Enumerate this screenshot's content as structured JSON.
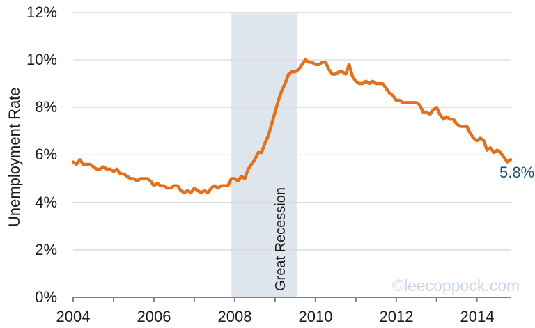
{
  "chart_data": {
    "type": "line",
    "xlabel": "",
    "ylabel": "Unemployment Rate",
    "ylim": [
      0,
      12
    ],
    "y_ticks": [
      0,
      2,
      4,
      6,
      8,
      10,
      12
    ],
    "y_tick_labels": [
      "0%",
      "2%",
      "4%",
      "6%",
      "8%",
      "10%",
      "12%"
    ],
    "xlim": [
      2004,
      2014.833
    ],
    "x_minor_tick_years": [
      2004,
      2005,
      2006,
      2007,
      2008,
      2009,
      2010,
      2011,
      2012,
      2013,
      2014
    ],
    "x_tick_labels": [
      {
        "year": 2004,
        "label": "2004"
      },
      {
        "year": 2006,
        "label": "2006"
      },
      {
        "year": 2008,
        "label": "2008"
      },
      {
        "year": 2010,
        "label": "2010"
      },
      {
        "year": 2012,
        "label": "2012"
      },
      {
        "year": 2014,
        "label": "2014"
      }
    ],
    "grid": "horizontal",
    "legend": "none",
    "series": [
      {
        "name": "Unemployment Rate",
        "color": "#E2711D",
        "frequency": "monthly",
        "start_year": 2004,
        "start_month": 1,
        "values": [
          5.7,
          5.6,
          5.8,
          5.6,
          5.6,
          5.6,
          5.5,
          5.4,
          5.4,
          5.5,
          5.4,
          5.4,
          5.3,
          5.4,
          5.2,
          5.2,
          5.1,
          5.0,
          5.0,
          4.9,
          5.0,
          5.0,
          5.0,
          4.9,
          4.7,
          4.8,
          4.7,
          4.7,
          4.6,
          4.6,
          4.7,
          4.7,
          4.5,
          4.4,
          4.5,
          4.4,
          4.6,
          4.5,
          4.4,
          4.5,
          4.4,
          4.6,
          4.7,
          4.6,
          4.7,
          4.7,
          4.7,
          5.0,
          5.0,
          4.9,
          5.1,
          5.0,
          5.4,
          5.6,
          5.8,
          6.1,
          6.1,
          6.5,
          6.8,
          7.3,
          7.8,
          8.3,
          8.7,
          9.0,
          9.4,
          9.5,
          9.5,
          9.6,
          9.8,
          10.0,
          9.9,
          9.9,
          9.8,
          9.8,
          9.9,
          9.9,
          9.6,
          9.4,
          9.4,
          9.5,
          9.5,
          9.4,
          9.8,
          9.3,
          9.1,
          9.0,
          9.0,
          9.1,
          9.0,
          9.1,
          9.0,
          9.0,
          9.0,
          8.8,
          8.6,
          8.5,
          8.3,
          8.3,
          8.2,
          8.2,
          8.2,
          8.2,
          8.2,
          8.1,
          7.8,
          7.8,
          7.7,
          7.9,
          8.0,
          7.7,
          7.5,
          7.6,
          7.5,
          7.5,
          7.3,
          7.2,
          7.2,
          7.2,
          6.9,
          6.7,
          6.6,
          6.7,
          6.6,
          6.2,
          6.3,
          6.1,
          6.2,
          6.1,
          5.9,
          5.7,
          5.8
        ]
      }
    ],
    "recession_band": {
      "label": "Great Recession",
      "start_year": 2007.92,
      "end_year": 2009.54,
      "color": "#DFE5ED"
    },
    "end_label": {
      "text": "5.8%",
      "color": "#1F4E79"
    },
    "watermark": {
      "text": "©leecoppock.com",
      "color": "#C7D7EB"
    },
    "colors": {
      "line": "#E2711D",
      "gridline": "#D9D9D9",
      "axis": "#808080",
      "text": "#1a1a1a"
    }
  }
}
